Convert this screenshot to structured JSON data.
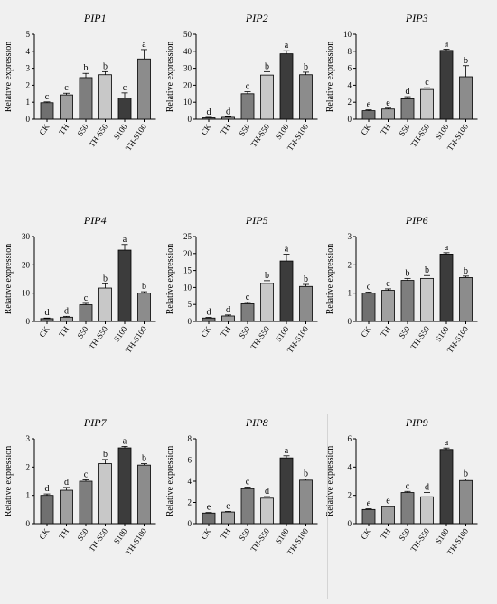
{
  "chart_data": [
    {
      "type": "bar",
      "title": "PIP1",
      "ylabel": "Relative expression",
      "categories": [
        "CK",
        "TH",
        "S50",
        "TH-S50",
        "S100",
        "TH-S100"
      ],
      "values": [
        0.97,
        1.43,
        2.45,
        2.62,
        1.25,
        3.55
      ],
      "errors": [
        0.05,
        0.1,
        0.25,
        0.18,
        0.3,
        0.55
      ],
      "letters": [
        "c",
        "c",
        "b",
        "b",
        "c",
        "a"
      ],
      "ylim": [
        0,
        5
      ],
      "yticks": [
        0,
        1,
        2,
        3,
        4,
        5
      ]
    },
    {
      "type": "bar",
      "title": "PIP2",
      "ylabel": "Relative expression",
      "categories": [
        "CK",
        "TH",
        "S50",
        "TH-S50",
        "S100",
        "TH-S100"
      ],
      "values": [
        0.8,
        1.1,
        15.0,
        26.0,
        38.5,
        26.2
      ],
      "errors": [
        0.3,
        0.3,
        1.2,
        2.0,
        1.8,
        1.5
      ],
      "letters": [
        "d",
        "d",
        "c",
        "b",
        "a",
        "b"
      ],
      "ylim": [
        0,
        50
      ],
      "yticks": [
        0,
        10,
        20,
        30,
        40,
        50
      ]
    },
    {
      "type": "bar",
      "title": "PIP3",
      "ylabel": "Relative expression",
      "categories": [
        "CK",
        "TH",
        "S50",
        "TH-S50",
        "S100",
        "TH-S100"
      ],
      "values": [
        1.0,
        1.2,
        2.4,
        3.5,
        8.1,
        5.0
      ],
      "errors": [
        0.1,
        0.1,
        0.25,
        0.2,
        0.15,
        1.3
      ],
      "letters": [
        "e",
        "e",
        "d",
        "c",
        "a",
        "b"
      ],
      "ylim": [
        0,
        10
      ],
      "yticks": [
        0,
        2,
        4,
        6,
        8,
        10
      ]
    },
    {
      "type": "bar",
      "title": "PIP4",
      "ylabel": "Relative expression",
      "categories": [
        "CK",
        "TH",
        "S50",
        "TH-S50",
        "S100",
        "TH-S100"
      ],
      "values": [
        1.0,
        1.5,
        5.9,
        11.8,
        25.2,
        10.0
      ],
      "errors": [
        0.2,
        0.3,
        0.5,
        1.5,
        2.0,
        0.5
      ],
      "letters": [
        "d",
        "d",
        "c",
        "b",
        "a",
        "b"
      ],
      "ylim": [
        0,
        30
      ],
      "yticks": [
        0,
        10,
        20,
        30
      ]
    },
    {
      "type": "bar",
      "title": "PIP5",
      "ylabel": "Relative expression",
      "categories": [
        "CK",
        "TH",
        "S50",
        "TH-S50",
        "S100",
        "TH-S100"
      ],
      "values": [
        1.0,
        1.6,
        5.2,
        11.2,
        17.8,
        10.3
      ],
      "errors": [
        0.2,
        0.3,
        0.4,
        0.8,
        2.0,
        0.6
      ],
      "letters": [
        "d",
        "d",
        "c",
        "b",
        "a",
        "b"
      ],
      "ylim": [
        0,
        25
      ],
      "yticks": [
        0,
        5,
        10,
        15,
        20,
        25
      ]
    },
    {
      "type": "bar",
      "title": "PIP6",
      "ylabel": "Relative expression",
      "categories": [
        "CK",
        "TH",
        "S50",
        "TH-S50",
        "S100",
        "TH-S100"
      ],
      "values": [
        1.0,
        1.1,
        1.45,
        1.52,
        2.38,
        1.55
      ],
      "errors": [
        0.04,
        0.05,
        0.07,
        0.1,
        0.05,
        0.05
      ],
      "letters": [
        "c",
        "c",
        "b",
        "b",
        "a",
        "b"
      ],
      "ylim": [
        0,
        3
      ],
      "yticks": [
        0,
        1,
        2,
        3
      ]
    },
    {
      "type": "bar",
      "title": "PIP7",
      "ylabel": "Relative expression",
      "categories": [
        "CK",
        "TH",
        "S50",
        "TH-S50",
        "S100",
        "TH-S100"
      ],
      "values": [
        1.0,
        1.18,
        1.5,
        2.12,
        2.68,
        2.07
      ],
      "errors": [
        0.05,
        0.1,
        0.05,
        0.15,
        0.05,
        0.05
      ],
      "letters": [
        "d",
        "d",
        "c",
        "b",
        "a",
        "b"
      ],
      "ylim": [
        0,
        3
      ],
      "yticks": [
        0,
        1,
        2,
        3
      ]
    },
    {
      "type": "bar",
      "title": "PIP8",
      "ylabel": "Relative expression",
      "categories": [
        "CK",
        "TH",
        "S50",
        "TH-S50",
        "S100",
        "TH-S100"
      ],
      "values": [
        1.0,
        1.1,
        3.3,
        2.4,
        6.2,
        4.1
      ],
      "errors": [
        0.05,
        0.05,
        0.15,
        0.15,
        0.2,
        0.1
      ],
      "letters": [
        "e",
        "e",
        "c",
        "d",
        "a",
        "b"
      ],
      "ylim": [
        0,
        8
      ],
      "yticks": [
        0,
        2,
        4,
        6,
        8
      ]
    },
    {
      "type": "bar",
      "title": "PIP9",
      "ylabel": "Relative expression",
      "categories": [
        "CK",
        "TH",
        "S50",
        "TH-S50",
        "S100",
        "TH-S100"
      ],
      "values": [
        1.0,
        1.2,
        2.2,
        1.9,
        5.25,
        3.05
      ],
      "errors": [
        0.05,
        0.05,
        0.08,
        0.3,
        0.1,
        0.1
      ],
      "letters": [
        "e",
        "e",
        "c",
        "d",
        "a",
        "b"
      ],
      "ylim": [
        0,
        6
      ],
      "yticks": [
        0,
        2,
        4,
        6
      ]
    }
  ],
  "style": {
    "bar_colors": [
      "#707070",
      "#a0a0a0",
      "#7e7e7e",
      "#c8c8c8",
      "#3c3c3c",
      "#8c8c8c"
    ],
    "background": "#f0f0f0",
    "axis_color": "#000000"
  }
}
